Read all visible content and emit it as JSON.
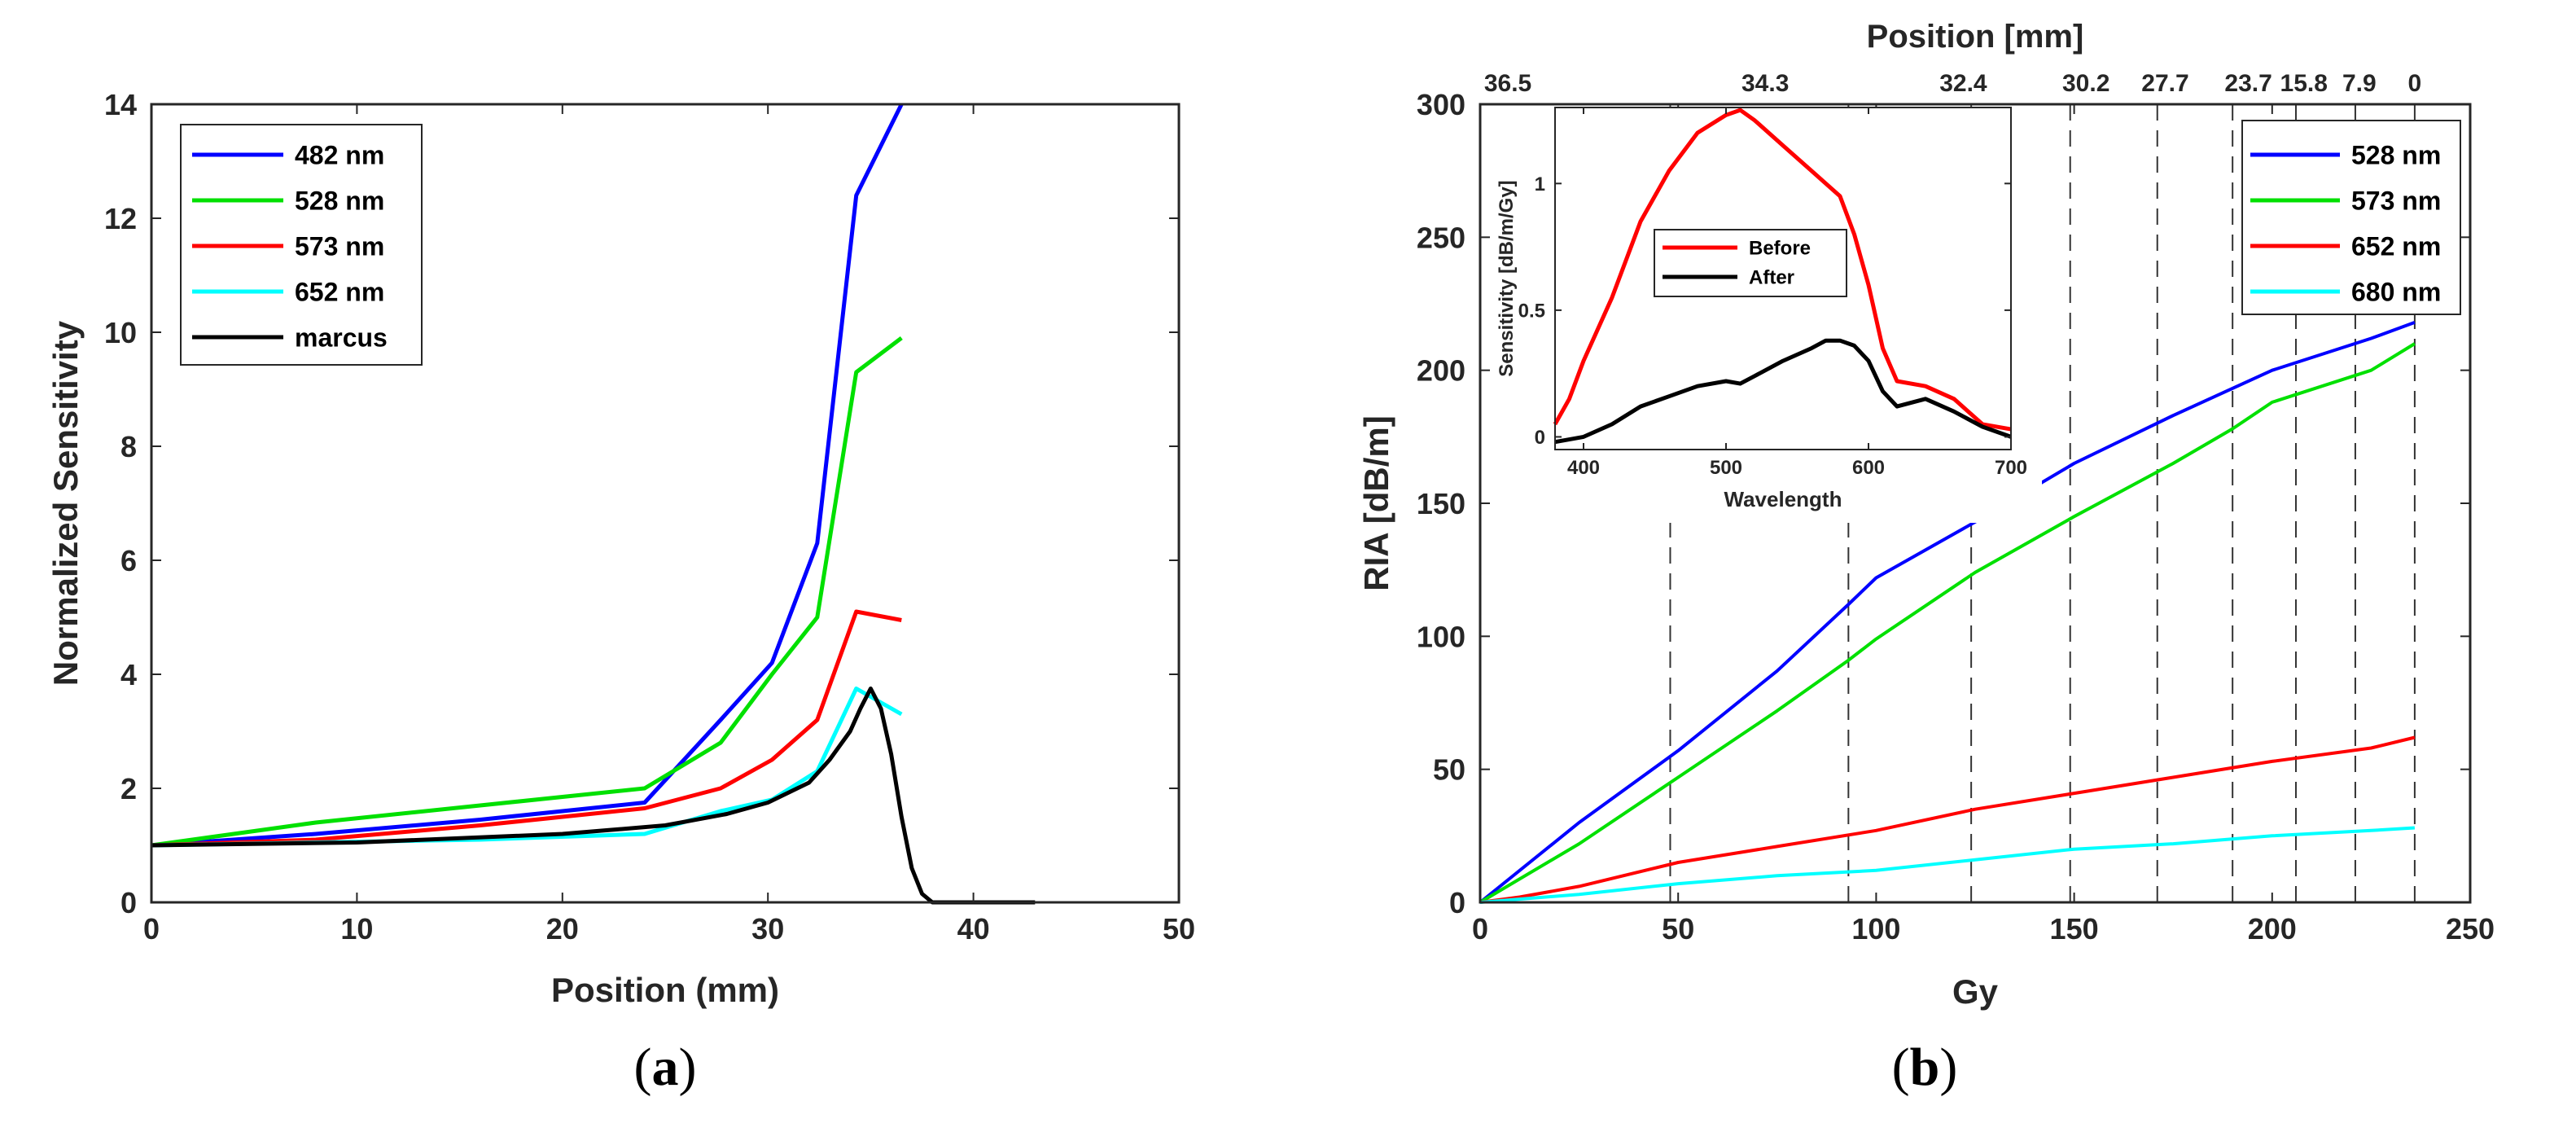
{
  "panels": {
    "a": {
      "caption_open": "(",
      "caption_letter": "a",
      "caption_close": ")"
    },
    "b": {
      "caption_open": "(",
      "caption_letter": "b",
      "caption_close": ")"
    }
  },
  "chart_data": [
    {
      "id": "a",
      "type": "line",
      "xlabel": "Position (mm)",
      "ylabel": "Normalized Sensitivity",
      "xlim": [
        0,
        50
      ],
      "ylim": [
        0,
        14
      ],
      "xticks": [
        0,
        10,
        20,
        30,
        40,
        50
      ],
      "yticks": [
        0,
        2,
        4,
        6,
        8,
        10,
        12,
        14
      ],
      "grid": false,
      "legend_position": "top-left",
      "series": [
        {
          "name": "482 nm",
          "color": "#0000ff",
          "x": [
            0,
            8,
            16,
            24,
            27.7,
            30.2,
            32.4,
            34.3,
            36.5
          ],
          "y": [
            1.0,
            1.2,
            1.45,
            1.75,
            3.2,
            4.2,
            6.3,
            12.4,
            14.0
          ]
        },
        {
          "name": "528 nm",
          "color": "#00e000",
          "x": [
            0,
            8,
            16,
            24,
            27.7,
            30.2,
            32.4,
            34.3,
            36.5
          ],
          "y": [
            1.0,
            1.4,
            1.7,
            2.0,
            2.8,
            4.0,
            5.0,
            9.3,
            9.9
          ]
        },
        {
          "name": "573 nm",
          "color": "#ff0000",
          "x": [
            0,
            8,
            16,
            24,
            27.7,
            30.2,
            32.4,
            34.3,
            36.5
          ],
          "y": [
            1.0,
            1.1,
            1.35,
            1.65,
            2.0,
            2.5,
            3.2,
            5.1,
            4.95
          ]
        },
        {
          "name": "652 nm",
          "color": "#00ffff",
          "x": [
            0,
            8,
            16,
            24,
            27.7,
            30.2,
            32.4,
            34.3,
            36.5
          ],
          "y": [
            1.0,
            1.05,
            1.1,
            1.2,
            1.6,
            1.8,
            2.3,
            3.75,
            3.3
          ]
        },
        {
          "name": "marcus",
          "color": "#000000",
          "x": [
            0,
            10,
            20,
            25,
            28,
            30,
            32,
            33,
            34,
            34.5,
            35,
            35.5,
            36,
            36.5,
            37,
            37.5,
            38,
            40,
            43
          ],
          "y": [
            1.0,
            1.05,
            1.2,
            1.35,
            1.55,
            1.75,
            2.1,
            2.5,
            3.0,
            3.4,
            3.75,
            3.4,
            2.6,
            1.5,
            0.6,
            0.15,
            0.0,
            0.0,
            0.0
          ]
        }
      ]
    },
    {
      "id": "b",
      "type": "line",
      "xlabel": "Gy",
      "ylabel": "RIA [dB/m]",
      "top_xlabel": "Position [mm]",
      "xlim": [
        0,
        250
      ],
      "ylim": [
        0,
        300
      ],
      "xticks": [
        0,
        50,
        100,
        150,
        200,
        250
      ],
      "yticks": [
        0,
        50,
        100,
        150,
        200,
        250,
        300
      ],
      "top_ticks": [
        {
          "gy": 7,
          "label": "36.5"
        },
        {
          "gy": 72,
          "label": "34.3"
        },
        {
          "gy": 122,
          "label": "32.4"
        },
        {
          "gy": 153,
          "label": "30.2"
        },
        {
          "gy": 173,
          "label": "27.7"
        },
        {
          "gy": 194,
          "label": "23.7"
        },
        {
          "gy": 208,
          "label": "15.8"
        },
        {
          "gy": 222,
          "label": "7.9"
        },
        {
          "gy": 236,
          "label": "0"
        }
      ],
      "dashed_lines_gy": [
        48,
        93,
        124,
        149,
        171,
        190,
        206,
        221,
        236
      ],
      "grid": false,
      "legend_position": "top-right",
      "series": [
        {
          "name": "528 nm",
          "color": "#0000ff",
          "x": [
            0,
            25,
            50,
            75,
            93,
            100,
            125,
            150,
            175,
            200,
            225,
            236
          ],
          "y": [
            0,
            30,
            57,
            87,
            112,
            122,
            143,
            165,
            183,
            200,
            212,
            218
          ]
        },
        {
          "name": "573 nm",
          "color": "#00e000",
          "x": [
            0,
            25,
            50,
            75,
            93,
            100,
            125,
            150,
            175,
            190,
            200,
            225,
            236
          ],
          "y": [
            0,
            22,
            47,
            72,
            91,
            99,
            124,
            145,
            165,
            178,
            188,
            200,
            210
          ]
        },
        {
          "name": "652 nm",
          "color": "#ff0000",
          "x": [
            0,
            10,
            25,
            50,
            75,
            100,
            125,
            150,
            175,
            200,
            225,
            236
          ],
          "y": [
            0,
            2,
            6,
            15,
            21,
            27,
            35,
            41,
            47,
            53,
            58,
            62
          ]
        },
        {
          "name": "680 nm",
          "color": "#00ffff",
          "x": [
            0,
            25,
            50,
            75,
            100,
            125,
            150,
            175,
            200,
            225,
            236
          ],
          "y": [
            0,
            3,
            7,
            10,
            12,
            16,
            20,
            22,
            25,
            27,
            28
          ]
        }
      ],
      "inset": {
        "type": "line",
        "xlabel": "Wavelength",
        "ylabel": "Sensitivity [dB/m/Gy]",
        "xlim": [
          380,
          700
        ],
        "ylim": [
          -0.05,
          1.3
        ],
        "xticks": [
          400,
          500,
          600,
          700
        ],
        "yticks": [
          0,
          0.5,
          1
        ],
        "ytick_labels": [
          "0",
          "0.5",
          "1"
        ],
        "legend_position": "center",
        "series": [
          {
            "name": "Before",
            "color": "#ff0000",
            "x": [
              380,
              390,
              400,
              420,
              440,
              460,
              480,
              500,
              510,
              520,
              540,
              560,
              580,
              590,
              600,
              610,
              620,
              640,
              660,
              680,
              700
            ],
            "y": [
              0.05,
              0.15,
              0.3,
              0.55,
              0.85,
              1.05,
              1.2,
              1.27,
              1.29,
              1.25,
              1.15,
              1.05,
              0.95,
              0.8,
              0.6,
              0.35,
              0.22,
              0.2,
              0.15,
              0.05,
              0.03
            ]
          },
          {
            "name": "After",
            "color": "#000000",
            "x": [
              380,
              400,
              420,
              440,
              460,
              480,
              500,
              510,
              520,
              540,
              560,
              570,
              580,
              590,
              600,
              610,
              620,
              640,
              660,
              680,
              700
            ],
            "y": [
              -0.02,
              0.0,
              0.05,
              0.12,
              0.16,
              0.2,
              0.22,
              0.21,
              0.24,
              0.3,
              0.35,
              0.38,
              0.38,
              0.36,
              0.3,
              0.18,
              0.12,
              0.15,
              0.1,
              0.04,
              0.0
            ]
          }
        ]
      }
    }
  ]
}
